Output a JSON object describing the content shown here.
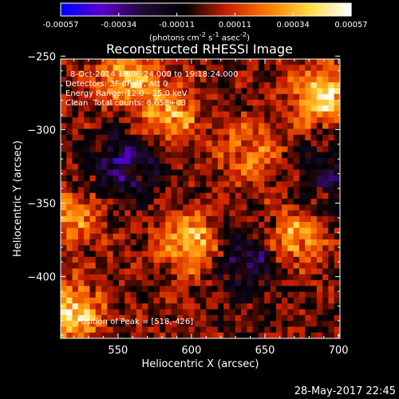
{
  "chart_data": {
    "type": "heatmap",
    "title": "Reconstructed RHESSI Image",
    "xlabel": "Heliocentric X (arcsec)",
    "ylabel": "Heliocentric Y (arcsec)",
    "xlim": [
      511,
      701
    ],
    "ylim": [
      -442,
      -252
    ],
    "xticks": [
      550,
      600,
      650,
      700
    ],
    "yticks": [
      -400,
      -350,
      -300,
      -250
    ],
    "pixel_size_arcsec": 4,
    "colorbar": {
      "min": -0.00057,
      "max": 0.00057,
      "ticks": [
        "-0.00057",
        "-0.00034",
        "-0.00011",
        "0.00011",
        "0.00034",
        "0.00057"
      ],
      "unit_parts": [
        "(photons cm",
        "-2",
        " s",
        "-1",
        " asec",
        "-2",
        ")"
      ],
      "colors": [
        "#0000ff",
        "#5a00c8",
        "#1e0a30",
        "#000000",
        "#c81e00",
        "#ff7800",
        "#ffdc40",
        "#ffffff"
      ]
    },
    "bright_regions": [
      {
        "x": 518,
        "y": -426,
        "value": 0.00057
      },
      {
        "x": 555,
        "y": -262,
        "value": 0.00045
      },
      {
        "x": 690,
        "y": -278,
        "value": 0.00052
      },
      {
        "x": 600,
        "y": -378,
        "value": 0.00048
      },
      {
        "x": 585,
        "y": -290,
        "value": 0.0004
      },
      {
        "x": 670,
        "y": -375,
        "value": 0.00042
      },
      {
        "x": 640,
        "y": -315,
        "value": 0.0003
      },
      {
        "x": 520,
        "y": -360,
        "value": 0.00035
      }
    ],
    "dark_regions": [
      {
        "x": 555,
        "y": -325,
        "value": -0.0003
      },
      {
        "x": 640,
        "y": -390,
        "value": -0.00028
      },
      {
        "x": 700,
        "y": -330,
        "value": -0.00022
      }
    ]
  },
  "annotations": {
    "time": "8-Oct-2014 19:06:24.000 to 19:18:24.000",
    "detectors": "Detectors: 3F 6F 9F, Att 0",
    "energy": "Energy Range: 12.0 - 25.0 keV",
    "method": "Clean",
    "counts": "Total counts: 6.65E+03",
    "peak": "Position of Peak = [518,-426]"
  },
  "footer": {
    "date": "28-May-2017 22:45"
  }
}
